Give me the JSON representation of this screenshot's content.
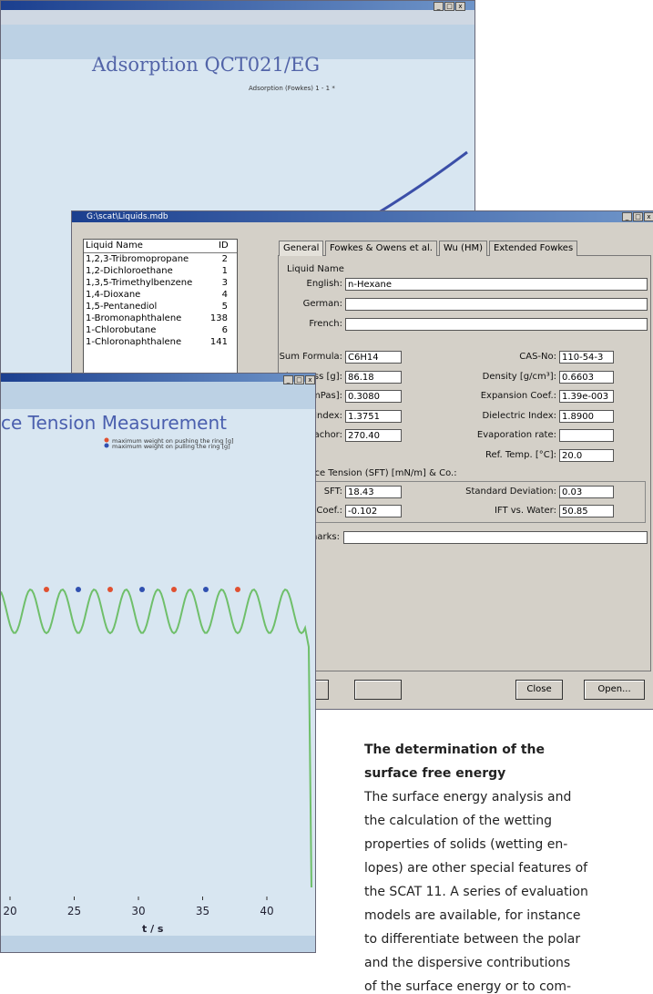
{
  "back_window": {
    "title": "Adsorption QCT021/EG",
    "legend": "Adsorption (Fowkes) 1 - 1 *"
  },
  "liquids_window": {
    "title": "G:\\scat\\Liquids.mdb",
    "list": {
      "headers": [
        "Liquid Name",
        "ID"
      ],
      "rows": [
        [
          "1,2,3-Tribromopropane",
          "2"
        ],
        [
          "1,2-Dichloroethane",
          "1"
        ],
        [
          "1,3,5-Trimethylbenzene",
          "3"
        ],
        [
          "1,4-Dioxane",
          "4"
        ],
        [
          "1,5-Pentanediol",
          "5"
        ],
        [
          "1-Bromonaphthalene",
          "138"
        ],
        [
          "1-Chlorobutane",
          "6"
        ],
        [
          "1-Chloronaphthalene",
          "141"
        ]
      ]
    },
    "tabs": [
      "General",
      "Fowkes & Owens et al.",
      "Wu (HM)",
      "Extended Fowkes"
    ],
    "name_group": {
      "label": "Liquid Name",
      "fields": [
        {
          "label": "English:",
          "value": "n-Hexane"
        },
        {
          "label": "German:",
          "value": ""
        },
        {
          "label": "French:",
          "value": ""
        }
      ]
    },
    "properties_left": [
      {
        "label": "Sum Formula:",
        "value": "C6H14"
      },
      {
        "label": "Molar Mass [g]:",
        "value": "86.18"
      },
      {
        "label": "Viscosity [mPas]:",
        "value": "0.3080"
      },
      {
        "label": "Refractive Index:",
        "value": "1.3751"
      },
      {
        "label": "Parachor:",
        "value": "270.40"
      }
    ],
    "properties_right": [
      {
        "label": "CAS-No:",
        "value": "110-54-3"
      },
      {
        "label": "Density [g/cm³]:",
        "value": "0.6603"
      },
      {
        "label": "Expansion Coef.:",
        "value": "1.39e-003"
      },
      {
        "label": "Dielectric Index:",
        "value": "1.8900"
      },
      {
        "label": "Evaporation rate:",
        "value": ""
      },
      {
        "label": "Ref. Temp. [°C]:",
        "value": "20.0"
      }
    ],
    "sft_section": "Surface Tension (SFT) [mN/m] & Co.:",
    "sft_left": [
      {
        "label": "SFT:",
        "value": "18.43"
      },
      {
        "label": "Temp. Coef.:",
        "value": "-0.102"
      }
    ],
    "sft_right": [
      {
        "label": "Standard Deviation:",
        "value": "0.03"
      },
      {
        "label": "IFT vs. Water:",
        "value": "50.85"
      }
    ],
    "remarks_label": "Remarks:",
    "buttons": [
      "Close",
      "Open..."
    ]
  },
  "front_window": {
    "title": "ce Tension Measurement",
    "legend": [
      "maximum weight on pushing the ring [g]",
      "maximum weight on pulling the ring [g]"
    ],
    "xticks": [
      20,
      25,
      30,
      35,
      40
    ],
    "xlabel": "t / s"
  },
  "article": {
    "heading": [
      "The determination of the",
      "surface free energy"
    ],
    "paragraph": [
      "The surface energy analysis and",
      "the calculation of the wetting",
      "properties of solids (wetting en-",
      "lopes) are other special features of",
      "the SCAT 11. A series of evaluation",
      "models are available, for instance",
      "to differentiate between the polar",
      "and the dispersive contributions",
      "of the surface energy or to com-"
    ]
  }
}
